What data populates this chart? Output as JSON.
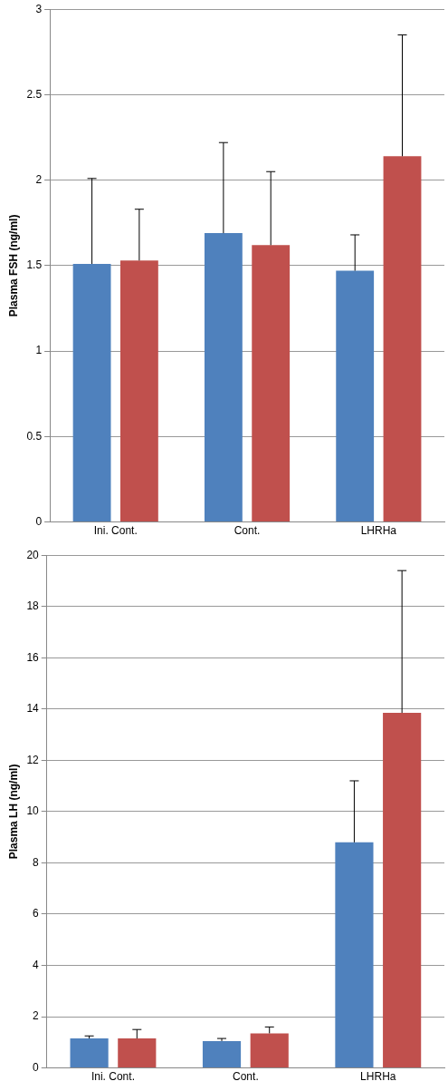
{
  "chart_data": [
    {
      "type": "bar",
      "ylabel": "Plasma FSH (ng/ml)",
      "categories": [
        "Ini. Cont.",
        "Cont.",
        "LHRHa"
      ],
      "series": [
        {
          "color": "#4f81bd",
          "values": [
            1.51,
            1.69,
            1.47
          ],
          "errors": [
            [
              1.51,
              2.01
            ],
            [
              1.69,
              2.22
            ],
            [
              1.47,
              1.68
            ]
          ]
        },
        {
          "color": "#c0504d",
          "values": [
            1.53,
            1.62,
            2.14
          ],
          "errors": [
            [
              1.53,
              1.83
            ],
            [
              1.62,
              2.05
            ],
            [
              2.14,
              2.85
            ]
          ]
        }
      ],
      "ylim": [
        0,
        3
      ],
      "yticks": [
        0,
        0.5,
        1,
        1.5,
        2,
        2.5,
        3
      ],
      "grid": "y",
      "legend": false
    },
    {
      "type": "bar",
      "ylabel": "Plasma LH (ng/ml)",
      "categories": [
        "Ini. Cont.",
        "Cont.",
        "LHRHa"
      ],
      "series": [
        {
          "color": "#4f81bd",
          "values": [
            1.15,
            1.05,
            8.8
          ],
          "errors": [
            [
              1.15,
              1.25
            ],
            [
              1.05,
              1.15
            ],
            [
              8.8,
              11.2
            ]
          ]
        },
        {
          "color": "#c0504d",
          "values": [
            1.15,
            1.35,
            13.85
          ],
          "errors": [
            [
              1.15,
              1.5
            ],
            [
              1.35,
              1.6
            ],
            [
              13.85,
              19.4
            ]
          ]
        }
      ],
      "ylim": [
        0,
        20
      ],
      "yticks": [
        0,
        2,
        4,
        6,
        8,
        10,
        12,
        14,
        16,
        18,
        20
      ],
      "grid": "y",
      "legend": false
    }
  ]
}
